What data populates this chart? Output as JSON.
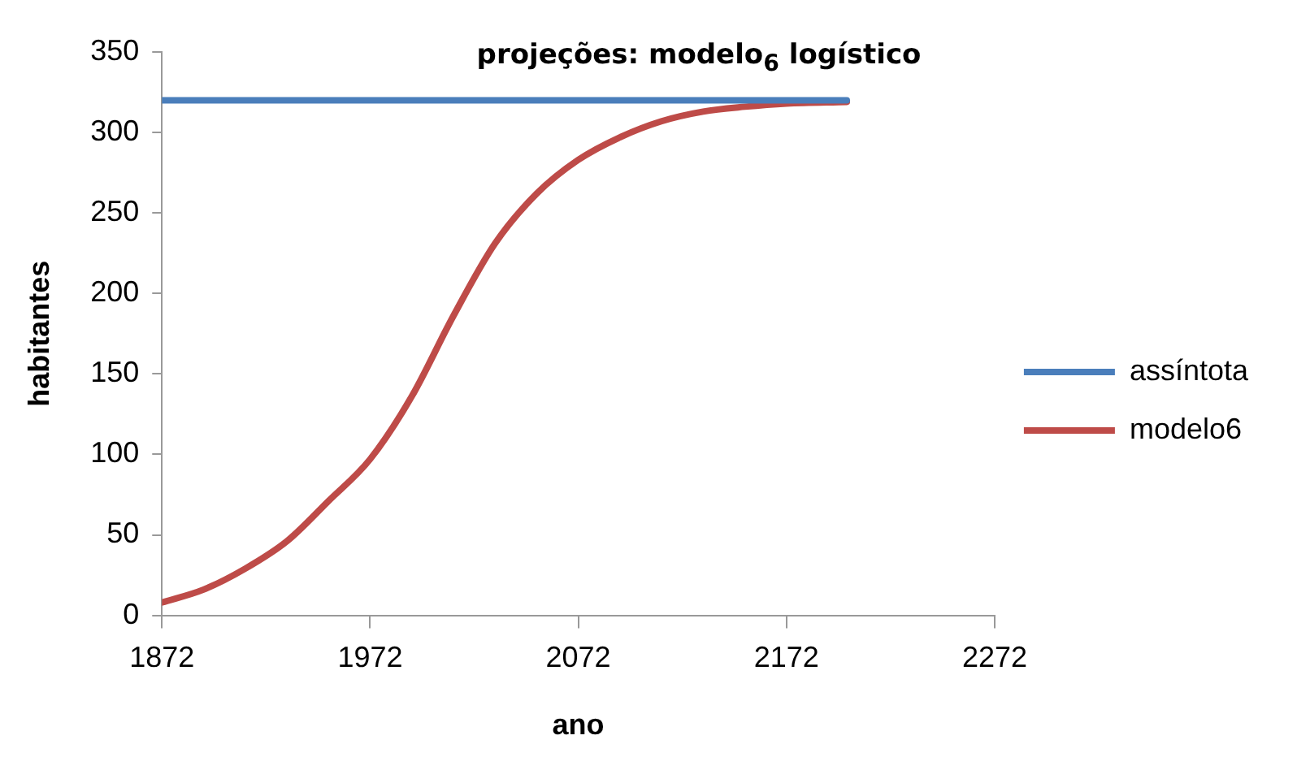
{
  "chart_data": {
    "type": "line",
    "title": "projeções: modelo$_{6}$ logístico",
    "xlabel": "ano",
    "ylabel": "habitantes",
    "xlim": [
      1872,
      2272
    ],
    "xticks": [
      1872,
      1972,
      2072,
      2172,
      2272
    ],
    "ylim": [
      0,
      350
    ],
    "yticks": [
      0,
      50,
      100,
      150,
      200,
      250,
      300,
      350
    ],
    "grid": false,
    "legend": "right",
    "marker": "none",
    "series": [
      {
        "name": "assíntota",
        "color": "#4a7ebb",
        "x": [
          1872,
          2201
        ],
        "values": [
          320,
          320
        ]
      },
      {
        "name": "modelo6",
        "color": "#be4b48",
        "x": [
          1872,
          1892,
          1912,
          1932,
          1952,
          1972,
          1992,
          2012,
          2032,
          2052,
          2072,
          2092,
          2112,
          2132,
          2152,
          2172,
          2201
        ],
        "values": [
          8,
          16,
          29,
          46,
          71,
          97,
          136,
          186,
          231,
          262,
          283,
          297,
          307,
          313,
          316,
          318,
          319
        ]
      }
    ]
  }
}
